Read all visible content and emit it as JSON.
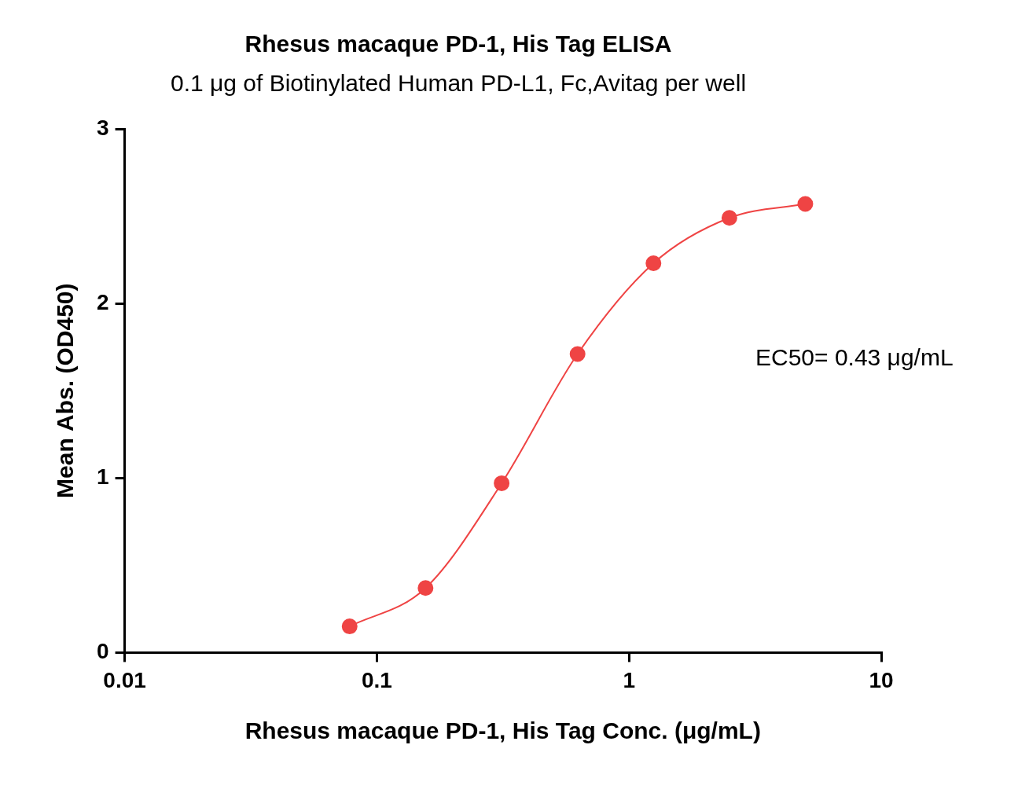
{
  "chart_data": {
    "type": "scatter",
    "title": "Rhesus macaque PD-1, His Tag ELISA",
    "subtitle": "0.1 μg of Biotinylated Human PD-L1, Fc,Avitag per well",
    "x_label": "Rhesus macaque PD-1, His Tag Conc. (μg/mL)",
    "y_label": "Mean Abs. (OD450)",
    "annotation": "EC50= 0.43 μg/mL",
    "log": "x",
    "grid": false,
    "x": [
      0.078,
      0.156,
      0.3125,
      0.625,
      1.25,
      2.5,
      5
    ],
    "values": [
      0.15,
      0.37,
      0.97,
      1.71,
      2.23,
      2.49,
      2.57
    ],
    "color": "#ef4444",
    "marker": "circle",
    "line_style": "solid",
    "xlim": [
      0.01,
      10
    ],
    "xticks": [
      0.01,
      0.1,
      1,
      10
    ],
    "ylim": [
      0,
      3
    ],
    "yticks": [
      0,
      1,
      2,
      3
    ]
  }
}
